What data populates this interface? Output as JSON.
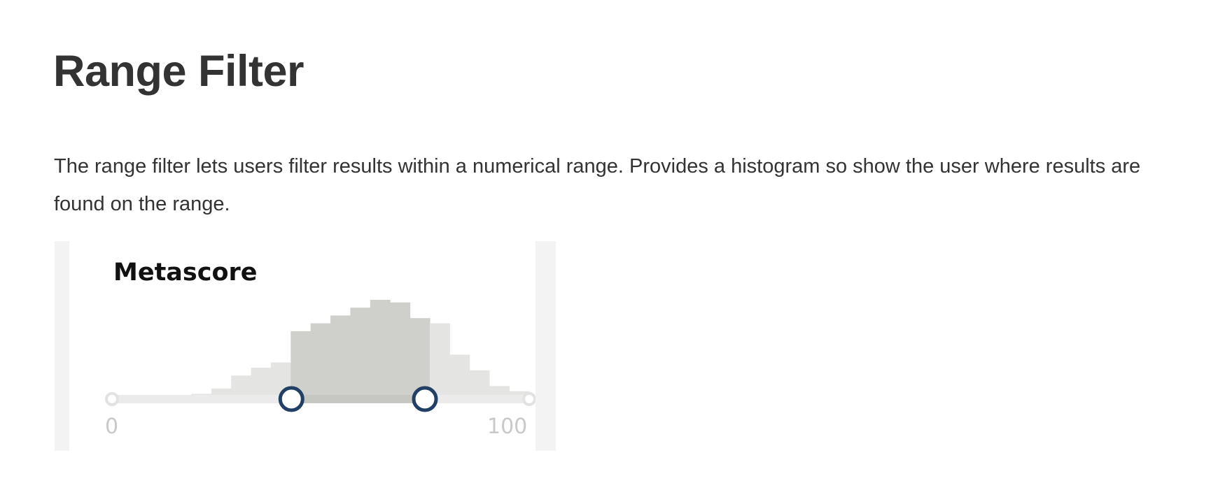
{
  "page": {
    "title": "Range Filter",
    "description": "The range filter lets users filter results within a numerical range. Provides a histogram so show the user where results are found on the range."
  },
  "range_filter": {
    "label": "Metascore",
    "min_label": "0",
    "max_label": "100",
    "min": 0,
    "max": 100,
    "selected_low": 43,
    "selected_high": 75,
    "colors": {
      "bar_unselected": "#e4e5e3",
      "bar_selected": "#cfd0cc",
      "track": "#ebebeb",
      "track_selected": "#c6c7c3",
      "handle_border": "#223f66",
      "end_cap": "#e2e2e2",
      "scale_text": "#c9c9c9"
    }
  },
  "chart_data": {
    "type": "bar",
    "x_start": 0,
    "bin_width": 4.76,
    "values": [
      0,
      0,
      0,
      1,
      2,
      4,
      9,
      12,
      14,
      26,
      29,
      32,
      35,
      38,
      37,
      31,
      29,
      17,
      11,
      5,
      3,
      0
    ],
    "xlim": [
      0,
      100
    ]
  }
}
